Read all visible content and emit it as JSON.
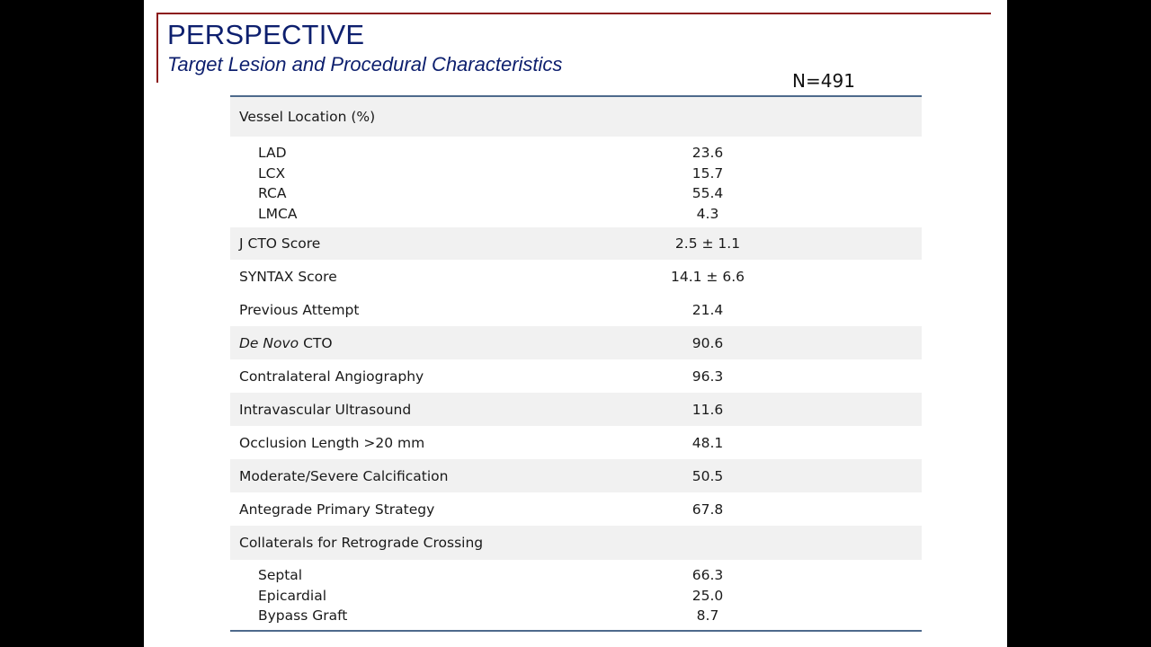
{
  "slide": {
    "title": "PERSPECTIVE",
    "subtitle": "Target Lesion and Procedural Characteristics",
    "column_header": "N=491"
  },
  "table": {
    "vessel_location": {
      "label": "Vessel Location (%)",
      "items": [
        {
          "label": "LAD",
          "value": "23.6"
        },
        {
          "label": "LCX",
          "value": "15.7"
        },
        {
          "label": "RCA",
          "value": "55.4"
        },
        {
          "label": "LMCA",
          "value": "4.3"
        }
      ]
    },
    "rows": [
      {
        "label": "J CTO Score",
        "value": "2.5 ± 1.1"
      },
      {
        "label": "SYNTAX Score",
        "value": "14.1 ± 6.6"
      },
      {
        "label": "Previous Attempt",
        "value": "21.4"
      },
      {
        "label_italic": "De Novo",
        "label_rest": " CTO",
        "value": "90.6"
      },
      {
        "label": "Contralateral Angiography",
        "value": "96.3"
      },
      {
        "label": "Intravascular Ultrasound",
        "value": "11.6"
      },
      {
        "label": "Occlusion Length >20 mm",
        "value": "48.1"
      },
      {
        "label": "Moderate/Severe Calcification",
        "value": "50.5"
      },
      {
        "label": "Antegrade Primary Strategy",
        "value": "67.8"
      }
    ],
    "collaterals": {
      "label": "Collaterals for Retrograde Crossing",
      "items": [
        {
          "label": "Septal",
          "value": "66.3"
        },
        {
          "label": "Epicardial",
          "value": "25.0"
        },
        {
          "label": "Bypass Graft",
          "value": "8.7"
        }
      ]
    }
  },
  "colors": {
    "title_text": "#0d1f6e",
    "accent_rule": "#8b1a1a",
    "table_rule": "#4e6a8c",
    "row_shade": "#f1f1f1"
  }
}
